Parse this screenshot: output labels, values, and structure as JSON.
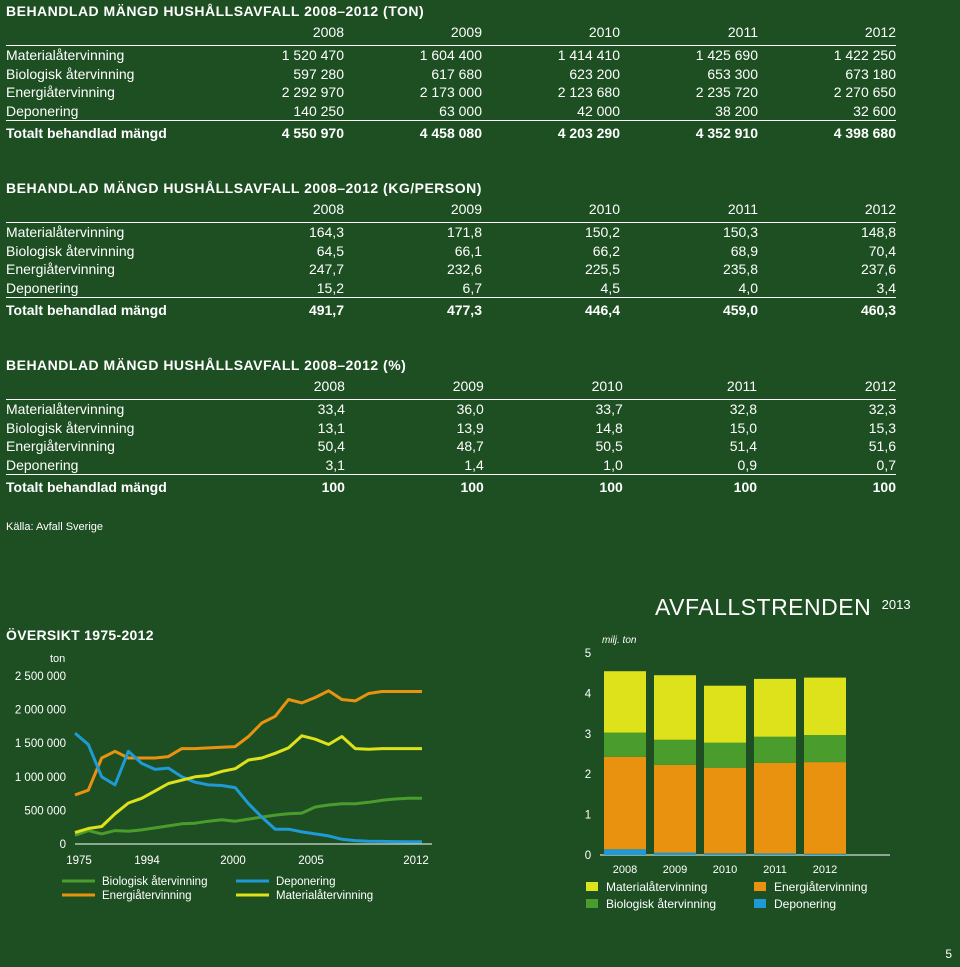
{
  "tables": [
    {
      "title": "BEHANDLAD MÄNGD HUSHÅLLSAVFALL 2008–2012 (TON)",
      "years": [
        "2008",
        "2009",
        "2010",
        "2011",
        "2012"
      ],
      "rows": [
        {
          "label": "Materialåtervinning",
          "values": [
            "1 520 470",
            "1 604 400",
            "1 414 410",
            "1 425 690",
            "1 422 250"
          ]
        },
        {
          "label": "Biologisk återvinning",
          "values": [
            "597 280",
            "617 680",
            "623 200",
            "653 300",
            "673 180"
          ]
        },
        {
          "label": "Energiåtervinning",
          "values": [
            "2 292 970",
            "2 173 000",
            "2 123 680",
            "2 235 720",
            "2 270 650"
          ]
        },
        {
          "label": "Deponering",
          "values": [
            "140 250",
            "63 000",
            "42 000",
            "38 200",
            "32 600"
          ]
        }
      ],
      "total": {
        "label": "Totalt behandlad mängd",
        "values": [
          "4 550 970",
          "4 458 080",
          "4 203 290",
          "4 352 910",
          "4 398 680"
        ]
      }
    },
    {
      "title": "BEHANDLAD MÄNGD HUSHÅLLSAVFALL 2008–2012 (KG/PERSON)",
      "years": [
        "2008",
        "2009",
        "2010",
        "2011",
        "2012"
      ],
      "rows": [
        {
          "label": "Materialåtervinning",
          "values": [
            "164,3",
            "171,8",
            "150,2",
            "150,3",
            "148,8"
          ]
        },
        {
          "label": "Biologisk återvinning",
          "values": [
            "64,5",
            "66,1",
            "66,2",
            "68,9",
            "70,4"
          ]
        },
        {
          "label": "Energiåtervinning",
          "values": [
            "247,7",
            "232,6",
            "225,5",
            "235,8",
            "237,6"
          ]
        },
        {
          "label": "Deponering",
          "values": [
            "15,2",
            "6,7",
            "4,5",
            "4,0",
            "3,4"
          ]
        }
      ],
      "total": {
        "label": "Totalt behandlad mängd",
        "values": [
          "491,7",
          "477,3",
          "446,4",
          "459,0",
          "460,3"
        ]
      }
    },
    {
      "title": "BEHANDLAD MÄNGD HUSHÅLLSAVFALL 2008–2012 (%)",
      "years": [
        "2008",
        "2009",
        "2010",
        "2011",
        "2012"
      ],
      "rows": [
        {
          "label": "Materialåtervinning",
          "values": [
            "33,4",
            "36,0",
            "33,7",
            "32,8",
            "32,3"
          ]
        },
        {
          "label": "Biologisk återvinning",
          "values": [
            "13,1",
            "13,9",
            "14,8",
            "15,0",
            "15,3"
          ]
        },
        {
          "label": "Energiåtervinning",
          "values": [
            "50,4",
            "48,7",
            "50,5",
            "51,4",
            "51,6"
          ]
        },
        {
          "label": "Deponering",
          "values": [
            "3,1",
            "1,4",
            "1,0",
            "0,9",
            "0,7"
          ]
        }
      ],
      "total": {
        "label": "Totalt behandlad mängd",
        "values": [
          "100",
          "100",
          "100",
          "100",
          "100"
        ]
      }
    }
  ],
  "source": "Källa: Avfall Sverige",
  "brand": {
    "name": "AVFALLSTRENDEN",
    "year": "2013"
  },
  "page_number": "5",
  "colors": {
    "background": "#1e4f22",
    "biologisk": "#4a9c2d",
    "energi": "#e8920f",
    "deponering": "#1e9ad6",
    "material": "#dde21a"
  },
  "chart_data": [
    {
      "type": "line",
      "title": "ÖVERSIKT 1975-2012",
      "ylabel": "ton",
      "ylim": [
        0,
        2500000
      ],
      "yticks": [
        "2 500 000",
        "2 000 000",
        "1 500 000",
        "1 000 000",
        "500 000",
        "0"
      ],
      "xticks": [
        "1975",
        "1994",
        "2000",
        "2005",
        "2012"
      ],
      "x": [
        0,
        1,
        2,
        3,
        4,
        5,
        6,
        7,
        8,
        9,
        10,
        11,
        12,
        13,
        14,
        15,
        16,
        17,
        18,
        19,
        20,
        21,
        22,
        23,
        24,
        25,
        26
      ],
      "series": [
        {
          "name": "Biologisk återvinning",
          "color": "#4a9c2d",
          "values": [
            130000,
            200000,
            150000,
            200000,
            190000,
            210000,
            240000,
            270000,
            300000,
            310000,
            340000,
            360000,
            340000,
            370000,
            400000,
            430000,
            450000,
            460000,
            550000,
            580000,
            600000,
            600000,
            620000,
            650000,
            670000,
            680000,
            680000
          ]
        },
        {
          "name": "Energiåtervinning",
          "color": "#e8920f",
          "values": [
            730000,
            800000,
            1280000,
            1380000,
            1280000,
            1280000,
            1280000,
            1300000,
            1420000,
            1420000,
            1430000,
            1440000,
            1450000,
            1600000,
            1800000,
            1900000,
            2150000,
            2100000,
            2180000,
            2280000,
            2150000,
            2130000,
            2240000,
            2270000,
            2270000,
            2270000,
            2270000
          ]
        },
        {
          "name": "Deponering",
          "color": "#1e9ad6",
          "values": [
            1650000,
            1480000,
            1000000,
            880000,
            1380000,
            1200000,
            1110000,
            1130000,
            1000000,
            920000,
            880000,
            870000,
            840000,
            600000,
            400000,
            220000,
            220000,
            180000,
            150000,
            120000,
            70000,
            50000,
            40000,
            38000,
            35000,
            33000,
            33000
          ]
        },
        {
          "name": "Materialåtervinning",
          "color": "#dde21a",
          "values": [
            170000,
            230000,
            260000,
            450000,
            610000,
            680000,
            790000,
            900000,
            950000,
            1000000,
            1020000,
            1080000,
            1120000,
            1250000,
            1280000,
            1350000,
            1430000,
            1610000,
            1560000,
            1480000,
            1600000,
            1420000,
            1410000,
            1420000,
            1420000,
            1420000,
            1420000
          ]
        }
      ]
    },
    {
      "type": "bar",
      "stacked": true,
      "ylabel": "milj. ton",
      "ylim": [
        0,
        5
      ],
      "yticks": [
        "5",
        "4",
        "3",
        "2",
        "1",
        "0"
      ],
      "categories": [
        "2008",
        "2009",
        "2010",
        "2011",
        "2012"
      ],
      "series": [
        {
          "name": "Deponering",
          "color": "#1e9ad6",
          "values": [
            0.14,
            0.06,
            0.04,
            0.04,
            0.03
          ]
        },
        {
          "name": "Energiåtervinning",
          "color": "#e8920f",
          "values": [
            2.29,
            2.17,
            2.12,
            2.24,
            2.27
          ]
        },
        {
          "name": "Biologisk återvinning",
          "color": "#4a9c2d",
          "values": [
            0.6,
            0.62,
            0.62,
            0.65,
            0.67
          ]
        },
        {
          "name": "Materialåtervinning",
          "color": "#dde21a",
          "values": [
            1.52,
            1.6,
            1.41,
            1.43,
            1.42
          ]
        }
      ],
      "legend": [
        {
          "name": "Materialåtervinning",
          "color": "#dde21a"
        },
        {
          "name": "Energiåtervinning",
          "color": "#e8920f"
        },
        {
          "name": "Biologisk återvinning",
          "color": "#4a9c2d"
        },
        {
          "name": "Deponering",
          "color": "#1e9ad6"
        }
      ]
    }
  ]
}
